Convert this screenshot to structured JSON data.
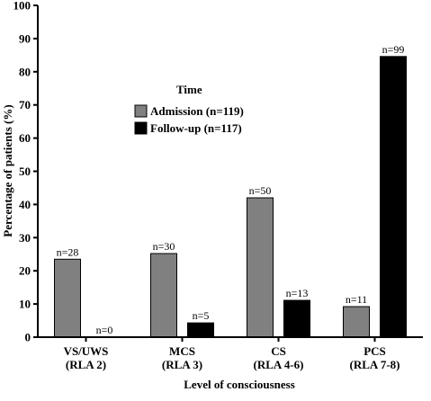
{
  "chart_data": {
    "type": "bar",
    "categories": [
      [
        "VS/UWS",
        "(RLA 2)"
      ],
      [
        "MCS",
        "(RLA 3)"
      ],
      [
        "CS",
        "(RLA 4-6)"
      ],
      [
        "PCS",
        "(RLA 7-8)"
      ]
    ],
    "series": [
      {
        "name": "Admission (n=119)",
        "color": "#808080",
        "values": [
          23.5,
          25.2,
          42.0,
          9.2
        ],
        "labels": [
          "n=28",
          "n=30",
          "n=50",
          "n=11"
        ]
      },
      {
        "name": "Follow-up (n=117)",
        "color": "#000000",
        "values": [
          0,
          4.3,
          11.1,
          84.6
        ],
        "labels": [
          "n=0",
          "n=5",
          "n=13",
          "n=99"
        ]
      }
    ],
    "title": "",
    "xlabel": "Level of consciousness",
    "ylabel": "Percentage of patients (%)",
    "ylim": [
      0,
      100
    ],
    "yticks": [
      0,
      10,
      20,
      30,
      40,
      50,
      60,
      70,
      80,
      90,
      100
    ],
    "legend": {
      "title": "Time",
      "placement": "upper-center"
    },
    "grid": false
  }
}
